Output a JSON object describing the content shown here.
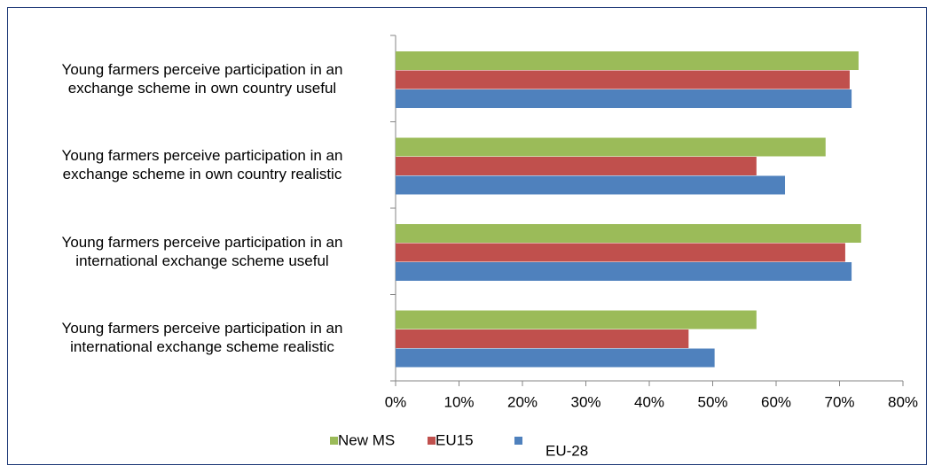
{
  "chart_data": {
    "type": "bar",
    "orientation": "horizontal",
    "categories": [
      "Young farmers perceive participation in an\nexchange scheme in own country useful",
      "Young farmers perceive participation in an\nexchange scheme in own country realistic",
      "Young farmers perceive participation in an\ninternational exchange scheme useful",
      "Young farmers perceive participation in an\ninternational exchange scheme realistic"
    ],
    "series": [
      {
        "name": "New MS",
        "color": "#9bbb59",
        "values": [
          73,
          67.8,
          73.4,
          56.9
        ]
      },
      {
        "name": "EU15",
        "color": "#c0504d",
        "values": [
          71.6,
          56.9,
          70.9,
          46.2
        ]
      },
      {
        "name": "EU-28",
        "color": "#4f81bd",
        "values": [
          71.9,
          61.4,
          71.9,
          50.3
        ]
      }
    ],
    "xlim": [
      0,
      80
    ],
    "xticks": [
      {
        "value": 0,
        "label": "0%"
      },
      {
        "value": 10,
        "label": "10%"
      },
      {
        "value": 20,
        "label": "20%"
      },
      {
        "value": 30,
        "label": "30%"
      },
      {
        "value": 40,
        "label": "40%"
      },
      {
        "value": 50,
        "label": "50%"
      },
      {
        "value": 60,
        "label": "60%"
      },
      {
        "value": 70,
        "label": "70%"
      },
      {
        "value": 80,
        "label": "80%"
      }
    ],
    "legend": "bottom"
  }
}
